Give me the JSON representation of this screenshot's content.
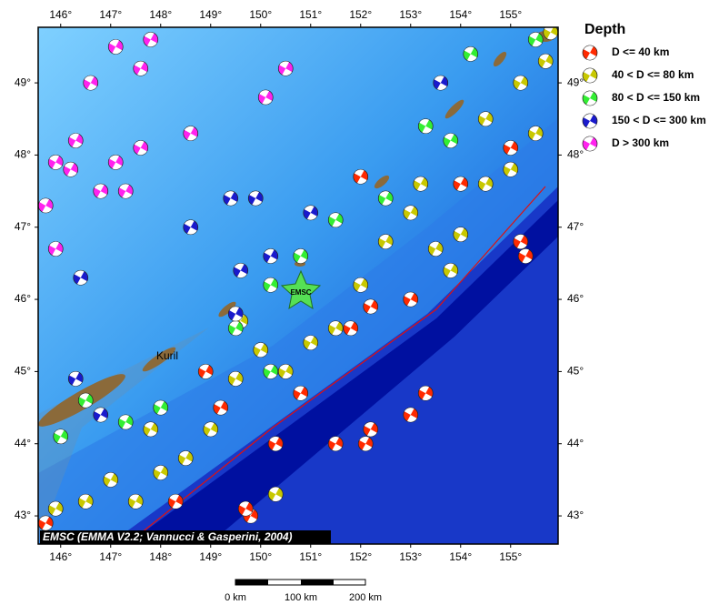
{
  "map": {
    "lon_range": [
      145.55,
      155.95
    ],
    "lat_range": [
      42.61,
      49.77
    ],
    "lon_ticks": [
      {
        "value": 146,
        "label": "146°"
      },
      {
        "value": 147,
        "label": "147°"
      },
      {
        "value": 148,
        "label": "148°"
      },
      {
        "value": 149,
        "label": "149°"
      },
      {
        "value": 150,
        "label": "150°"
      },
      {
        "value": 151,
        "label": "151°"
      },
      {
        "value": 152,
        "label": "152°"
      },
      {
        "value": 153,
        "label": "153°"
      },
      {
        "value": 154,
        "label": "154°"
      },
      {
        "value": 155,
        "label": "155°"
      }
    ],
    "lat_ticks": [
      {
        "value": 43,
        "label": "43°"
      },
      {
        "value": 44,
        "label": "44°"
      },
      {
        "value": 45,
        "label": "45°"
      },
      {
        "value": 46,
        "label": "46°"
      },
      {
        "value": 47,
        "label": "47°"
      },
      {
        "value": 48,
        "label": "48°"
      },
      {
        "value": 49,
        "label": "49°"
      }
    ],
    "place_label": "Kuril",
    "epicenter_label": "EMSC",
    "credit": "EMSC (EMMA V2.2; Vannucci & Gasperini, 2004)"
  },
  "legend": {
    "title": "Depth",
    "items": [
      {
        "label": "D <= 40 km",
        "color": "#ff2a00"
      },
      {
        "label": "40 < D <= 80 km",
        "color": "#c8c800"
      },
      {
        "label": "80 < D <= 150 km",
        "color": "#33ee33"
      },
      {
        "label": "150 < D <= 300 km",
        "color": "#1a1acc"
      },
      {
        "label": "D > 300 km",
        "color": "#ff22ee"
      }
    ]
  },
  "scale_bar": {
    "labels": [
      "0 km",
      "100 km",
      "200 km"
    ]
  },
  "events": [
    {
      "lon": 152.2,
      "lat": 44.2,
      "depth_class": 0
    },
    {
      "lon": 152.1,
      "lat": 44.0,
      "depth_class": 0
    },
    {
      "lon": 151.5,
      "lat": 44.0,
      "depth_class": 0
    },
    {
      "lon": 150.3,
      "lat": 44.0,
      "depth_class": 0
    },
    {
      "lon": 149.8,
      "lat": 43.0,
      "depth_class": 0
    },
    {
      "lon": 148.3,
      "lat": 43.2,
      "depth_class": 0
    },
    {
      "lon": 145.7,
      "lat": 42.9,
      "depth_class": 0
    },
    {
      "lon": 153.0,
      "lat": 44.4,
      "depth_class": 0
    },
    {
      "lon": 153.3,
      "lat": 44.7,
      "depth_class": 0
    },
    {
      "lon": 155.2,
      "lat": 46.8,
      "depth_class": 0
    },
    {
      "lon": 155.3,
      "lat": 46.6,
      "depth_class": 0
    },
    {
      "lon": 153.0,
      "lat": 46.0,
      "depth_class": 0
    },
    {
      "lon": 152.2,
      "lat": 45.9,
      "depth_class": 0
    },
    {
      "lon": 151.8,
      "lat": 45.6,
      "depth_class": 0
    },
    {
      "lon": 150.8,
      "lat": 44.7,
      "depth_class": 0
    },
    {
      "lon": 149.2,
      "lat": 44.5,
      "depth_class": 0
    },
    {
      "lon": 154.0,
      "lat": 47.6,
      "depth_class": 0
    },
    {
      "lon": 155.0,
      "lat": 48.1,
      "depth_class": 0
    },
    {
      "lon": 148.9,
      "lat": 45.0,
      "depth_class": 0
    },
    {
      "lon": 152.0,
      "lat": 47.7,
      "depth_class": 0
    },
    {
      "lon": 149.7,
      "lat": 43.1,
      "depth_class": 0
    },
    {
      "lon": 147.0,
      "lat": 43.5,
      "depth_class": 1
    },
    {
      "lon": 147.5,
      "lat": 43.2,
      "depth_class": 1
    },
    {
      "lon": 148.0,
      "lat": 43.6,
      "depth_class": 1
    },
    {
      "lon": 148.5,
      "lat": 43.8,
      "depth_class": 1
    },
    {
      "lon": 149.0,
      "lat": 44.2,
      "depth_class": 1
    },
    {
      "lon": 149.5,
      "lat": 44.9,
      "depth_class": 1
    },
    {
      "lon": 150.0,
      "lat": 45.3,
      "depth_class": 1
    },
    {
      "lon": 150.5,
      "lat": 45.0,
      "depth_class": 1
    },
    {
      "lon": 151.0,
      "lat": 45.4,
      "depth_class": 1
    },
    {
      "lon": 151.5,
      "lat": 45.6,
      "depth_class": 1
    },
    {
      "lon": 152.0,
      "lat": 46.2,
      "depth_class": 1
    },
    {
      "lon": 152.5,
      "lat": 46.8,
      "depth_class": 1
    },
    {
      "lon": 153.0,
      "lat": 47.2,
      "depth_class": 1
    },
    {
      "lon": 153.5,
      "lat": 46.7,
      "depth_class": 1
    },
    {
      "lon": 154.0,
      "lat": 46.9,
      "depth_class": 1
    },
    {
      "lon": 154.5,
      "lat": 47.6,
      "depth_class": 1
    },
    {
      "lon": 155.0,
      "lat": 47.8,
      "depth_class": 1
    },
    {
      "lon": 155.5,
      "lat": 48.3,
      "depth_class": 1
    },
    {
      "lon": 155.7,
      "lat": 49.3,
      "depth_class": 1
    },
    {
      "lon": 155.8,
      "lat": 49.7,
      "depth_class": 1
    },
    {
      "lon": 155.2,
      "lat": 49.0,
      "depth_class": 1
    },
    {
      "lon": 154.5,
      "lat": 48.5,
      "depth_class": 1
    },
    {
      "lon": 153.8,
      "lat": 46.4,
      "depth_class": 1
    },
    {
      "lon": 150.3,
      "lat": 43.3,
      "depth_class": 1
    },
    {
      "lon": 146.5,
      "lat": 43.2,
      "depth_class": 1
    },
    {
      "lon": 145.9,
      "lat": 43.1,
      "depth_class": 1
    },
    {
      "lon": 149.6,
      "lat": 45.7,
      "depth_class": 1
    },
    {
      "lon": 147.8,
      "lat": 44.2,
      "depth_class": 1
    },
    {
      "lon": 153.2,
      "lat": 47.6,
      "depth_class": 1
    },
    {
      "lon": 146.0,
      "lat": 44.1,
      "depth_class": 2
    },
    {
      "lon": 146.5,
      "lat": 44.6,
      "depth_class": 2
    },
    {
      "lon": 147.3,
      "lat": 44.3,
      "depth_class": 2
    },
    {
      "lon": 148.0,
      "lat": 44.5,
      "depth_class": 2
    },
    {
      "lon": 149.5,
      "lat": 45.6,
      "depth_class": 2
    },
    {
      "lon": 150.2,
      "lat": 46.2,
      "depth_class": 2
    },
    {
      "lon": 150.8,
      "lat": 46.6,
      "depth_class": 2
    },
    {
      "lon": 151.5,
      "lat": 47.1,
      "depth_class": 2
    },
    {
      "lon": 152.5,
      "lat": 47.4,
      "depth_class": 2
    },
    {
      "lon": 153.3,
      "lat": 48.4,
      "depth_class": 2
    },
    {
      "lon": 154.2,
      "lat": 49.4,
      "depth_class": 2
    },
    {
      "lon": 155.5,
      "lat": 49.6,
      "depth_class": 2
    },
    {
      "lon": 153.8,
      "lat": 48.2,
      "depth_class": 2
    },
    {
      "lon": 150.2,
      "lat": 45.0,
      "depth_class": 2
    },
    {
      "lon": 146.4,
      "lat": 46.3,
      "depth_class": 3
    },
    {
      "lon": 146.3,
      "lat": 44.9,
      "depth_class": 3
    },
    {
      "lon": 148.6,
      "lat": 47.0,
      "depth_class": 3
    },
    {
      "lon": 149.4,
      "lat": 47.4,
      "depth_class": 3
    },
    {
      "lon": 149.9,
      "lat": 47.4,
      "depth_class": 3
    },
    {
      "lon": 149.6,
      "lat": 46.4,
      "depth_class": 3
    },
    {
      "lon": 150.2,
      "lat": 46.6,
      "depth_class": 3
    },
    {
      "lon": 151.0,
      "lat": 47.2,
      "depth_class": 3
    },
    {
      "lon": 149.5,
      "lat": 45.8,
      "depth_class": 3
    },
    {
      "lon": 153.6,
      "lat": 49.0,
      "depth_class": 3
    },
    {
      "lon": 146.8,
      "lat": 44.4,
      "depth_class": 3
    },
    {
      "lon": 145.7,
      "lat": 47.3,
      "depth_class": 4
    },
    {
      "lon": 146.2,
      "lat": 47.8,
      "depth_class": 4
    },
    {
      "lon": 146.8,
      "lat": 47.5,
      "depth_class": 4
    },
    {
      "lon": 147.3,
      "lat": 47.5,
      "depth_class": 4
    },
    {
      "lon": 147.1,
      "lat": 47.9,
      "depth_class": 4
    },
    {
      "lon": 146.6,
      "lat": 49.0,
      "depth_class": 4
    },
    {
      "lon": 147.1,
      "lat": 49.5,
      "depth_class": 4
    },
    {
      "lon": 147.6,
      "lat": 49.2,
      "depth_class": 4
    },
    {
      "lon": 147.8,
      "lat": 49.6,
      "depth_class": 4
    },
    {
      "lon": 148.6,
      "lat": 48.3,
      "depth_class": 4
    },
    {
      "lon": 150.1,
      "lat": 48.8,
      "depth_class": 4
    },
    {
      "lon": 150.5,
      "lat": 49.2,
      "depth_class": 4
    },
    {
      "lon": 145.9,
      "lat": 47.9,
      "depth_class": 4
    },
    {
      "lon": 146.3,
      "lat": 48.2,
      "depth_class": 4
    },
    {
      "lon": 147.6,
      "lat": 48.1,
      "depth_class": 4
    },
    {
      "lon": 145.9,
      "lat": 46.7,
      "depth_class": 4
    }
  ]
}
